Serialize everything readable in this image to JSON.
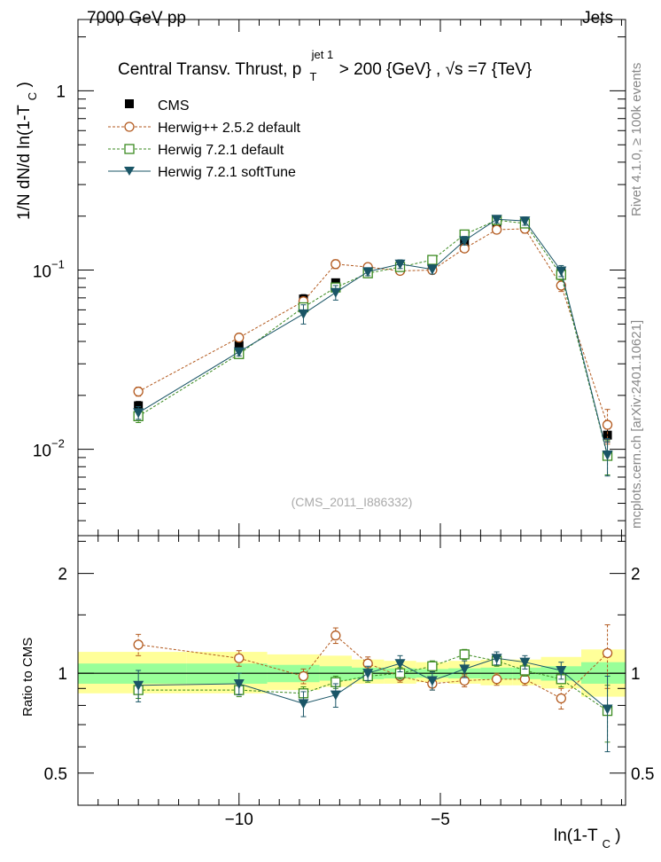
{
  "header": {
    "left": "7000 GeV pp",
    "right": "Jets",
    "side_top": "Rivet 4.1.0, ≥ 100k events",
    "side_bottom": "mcplots.cern.ch [arXiv:2401.10621]",
    "watermark": "(CMS_2011_I886332)"
  },
  "colors": {
    "cms": "#000000",
    "herwigpp": "#b35a1f",
    "herwig721": "#3a8a1f",
    "softtune": "#1a5566",
    "band_outer": "#ffff99",
    "band_inner": "#99ff99"
  },
  "chart_data": [
    {
      "type": "line",
      "scale": "log",
      "title_parts": {
        "main": "Central Transv. Thrust, p",
        "sub": "T",
        "sup": "jet 1",
        "cut": " > 200 {GeV} , ",
        "sqrt": "√s",
        "energy": "=7 {TeV}"
      },
      "ylabel_parts": {
        "main": "1/N   dN/d ln(1-T",
        "sub": "C",
        "close": ")"
      },
      "xlim": [
        -14.0,
        -0.4
      ],
      "ylim": [
        0.0033,
        2.5
      ],
      "y_ticks": [
        {
          "value": 1,
          "label": "1"
        },
        {
          "value": 0.1,
          "label": "10",
          "exp": "−1"
        },
        {
          "value": 0.01,
          "label": "10",
          "exp": "−2"
        }
      ],
      "x": [
        -12.5,
        -10.0,
        -8.4,
        -7.6,
        -6.8,
        -6.0,
        -5.2,
        -4.4,
        -3.6,
        -2.9,
        -2.0,
        -0.85
      ],
      "series": [
        {
          "name": "CMS",
          "style": "square-filled",
          "values": [
            0.0175,
            0.038,
            0.069,
            0.085,
            0.098,
            0.102,
            0.108,
            0.143,
            0.175,
            0.178,
            0.098,
            0.012
          ],
          "errors": [
            0.001,
            0.002,
            0.004,
            0.004,
            0.004,
            0.005,
            0.005,
            0.007,
            0.009,
            0.01,
            0.006,
            0.001
          ]
        },
        {
          "name": "Herwig++ 2.5.2 default",
          "style": "circle-open",
          "values": [
            0.021,
            0.042,
            0.067,
            0.108,
            0.104,
            0.099,
            0.1,
            0.132,
            0.168,
            0.17,
            0.082,
            0.0137
          ],
          "errors": [
            0.0012,
            0.0015,
            0.003,
            0.006,
            0.005,
            0.004,
            0.004,
            0.006,
            0.008,
            0.009,
            0.006,
            0.003
          ]
        },
        {
          "name": "Herwig 7.2.1 default",
          "style": "square-open",
          "values": [
            0.0153,
            0.034,
            0.062,
            0.08,
            0.096,
            0.104,
            0.114,
            0.158,
            0.19,
            0.182,
            0.094,
            0.0092
          ],
          "errors": [
            0.0012,
            0.0015,
            0.003,
            0.004,
            0.004,
            0.004,
            0.005,
            0.006,
            0.008,
            0.009,
            0.006,
            0.002
          ]
        },
        {
          "name": "Herwig 7.2.1 softTune",
          "style": "triangle-down",
          "values": [
            0.016,
            0.035,
            0.057,
            0.075,
            0.098,
            0.108,
            0.101,
            0.146,
            0.192,
            0.188,
            0.099,
            0.0093
          ],
          "errors": [
            0.0013,
            0.0018,
            0.007,
            0.007,
            0.005,
            0.006,
            0.006,
            0.008,
            0.009,
            0.01,
            0.007,
            0.0022
          ]
        }
      ]
    },
    {
      "type": "line",
      "scale": "log",
      "ylabel": "Ratio to CMS",
      "xlabel_parts": {
        "main": "ln(1-T",
        "sub": "C",
        "close": ")"
      },
      "xlim": [
        -14.0,
        -0.4
      ],
      "ylim": [
        0.4,
        2.6
      ],
      "y_ticks": [
        {
          "value": 2,
          "label": "2"
        },
        {
          "value": 1,
          "label": "1"
        },
        {
          "value": 0.5,
          "label": "0.5"
        }
      ],
      "x_ticks": [
        {
          "value": -10,
          "label": "−10"
        },
        {
          "value": -5,
          "label": "−5"
        }
      ],
      "band_edges": [
        -14.0,
        -11.3,
        -9.3,
        -8.0,
        -7.2,
        -6.4,
        -5.6,
        -4.8,
        -4.0,
        -3.2,
        -2.5,
        -1.5,
        -0.4
      ],
      "band_outer": [
        [
          0.87,
          1.16
        ],
        [
          0.87,
          1.16
        ],
        [
          0.89,
          1.14
        ],
        [
          0.91,
          1.13
        ],
        [
          0.93,
          1.1
        ],
        [
          0.93,
          1.09
        ],
        [
          0.94,
          1.08
        ],
        [
          0.93,
          1.09
        ],
        [
          0.92,
          1.1
        ],
        [
          0.92,
          1.1
        ],
        [
          0.9,
          1.12
        ],
        [
          0.85,
          1.18
        ]
      ],
      "band_inner": [
        [
          0.93,
          1.07
        ],
        [
          0.93,
          1.07
        ],
        [
          0.94,
          1.06
        ],
        [
          0.95,
          1.05
        ],
        [
          0.96,
          1.04
        ],
        [
          0.965,
          1.035
        ],
        [
          0.97,
          1.03
        ],
        [
          0.965,
          1.035
        ],
        [
          0.96,
          1.04
        ],
        [
          0.96,
          1.04
        ],
        [
          0.95,
          1.05
        ],
        [
          0.93,
          1.08
        ]
      ],
      "x": [
        -12.5,
        -10.0,
        -8.4,
        -7.6,
        -6.8,
        -6.0,
        -5.2,
        -4.4,
        -3.6,
        -2.9,
        -2.0,
        -0.85
      ],
      "series": [
        {
          "name": "Herwig++ 2.5.2 default",
          "style": "circle-open",
          "values": [
            1.22,
            1.11,
            0.98,
            1.3,
            1.07,
            0.98,
            0.93,
            0.95,
            0.96,
            0.96,
            0.84,
            1.15
          ],
          "errors": [
            0.09,
            0.06,
            0.05,
            0.07,
            0.05,
            0.04,
            0.04,
            0.04,
            0.04,
            0.04,
            0.06,
            0.25
          ]
        },
        {
          "name": "Herwig 7.2.1 default",
          "style": "square-open",
          "values": [
            0.89,
            0.89,
            0.87,
            0.94,
            0.98,
            1.0,
            1.05,
            1.14,
            1.09,
            1.02,
            0.96,
            0.77
          ],
          "errors": [
            0.05,
            0.04,
            0.04,
            0.04,
            0.04,
            0.04,
            0.04,
            0.04,
            0.04,
            0.04,
            0.05,
            0.15
          ]
        },
        {
          "name": "Herwig 7.2.1 softTune",
          "style": "triangle-down",
          "values": [
            0.92,
            0.93,
            0.81,
            0.86,
            1.0,
            1.07,
            0.95,
            1.03,
            1.11,
            1.08,
            1.02,
            0.78
          ],
          "errors": [
            0.1,
            0.07,
            0.07,
            0.07,
            0.05,
            0.06,
            0.06,
            0.06,
            0.05,
            0.05,
            0.06,
            0.2
          ]
        }
      ]
    }
  ]
}
